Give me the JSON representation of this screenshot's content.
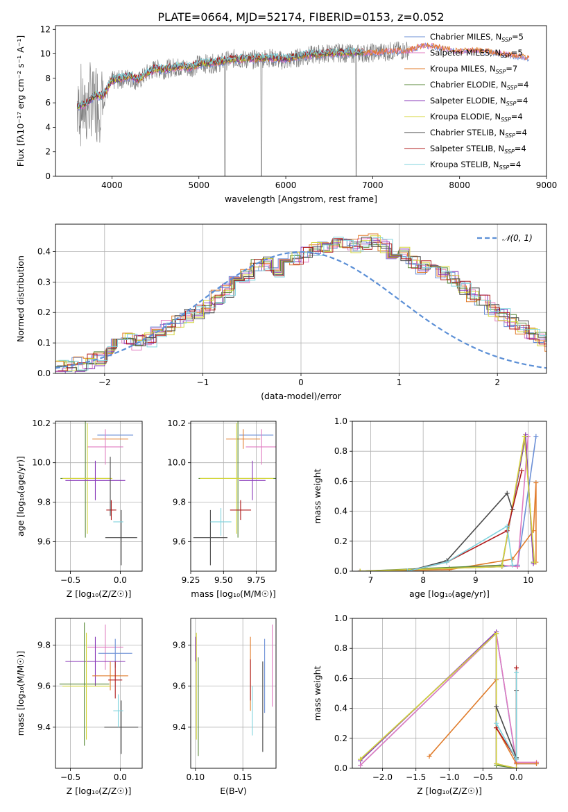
{
  "title": "PLATE=0664, MJD=52174, FIBERID=0153, z=0.052",
  "colors": {
    "Chabrier MILES": "#6b8fd6",
    "Salpeter MILES": "#e07bc0",
    "Kroupa MILES": "#e07b2a",
    "Chabrier ELODIE": "#5a8a3a",
    "Salpeter ELODIE": "#8a3ab9",
    "Kroupa ELODIE": "#d4d63a",
    "Chabrier STELIB": "#4a4a4a",
    "Salpeter STELIB": "#b01c1c",
    "Kroupa STELIB": "#7fd3dd"
  },
  "chart_data": [
    {
      "id": "spectrum",
      "type": "line",
      "xlabel": "wavelength [Angstrom, rest frame]",
      "ylabel": "Flux [fλ10⁻¹⁷ erg cm⁻² s⁻¹ A⁻¹]",
      "xlim": [
        3350,
        9000
      ],
      "ylim": [
        0,
        12.3
      ],
      "xticks": [
        4000,
        5000,
        6000,
        7000,
        8000,
        9000
      ],
      "yticks": [
        0,
        2,
        4,
        6,
        8,
        10,
        12
      ],
      "legend_position": "top-right",
      "legend": [
        "Chabrier MILES, N_SSP=5",
        "Salpeter MILES, N_SSP=5",
        "Kroupa MILES, N_SSP=7",
        "Chabrier ELODIE, N_SSP=4",
        "Salpeter ELODIE, N_SSP=4",
        "Kroupa ELODIE, N_SSP=4",
        "Chabrier STELIB, N_SSP=4",
        "Salpeter STELIB, N_SSP=4",
        "Kroupa STELIB, N_SSP=4"
      ],
      "data_wavelength": [
        3600,
        3700,
        3800,
        3900,
        4000,
        4100,
        4200,
        4300,
        4400,
        4500,
        4600,
        4700,
        4800,
        4900,
        5000,
        5200,
        5400,
        5600,
        5800,
        6000,
        6200,
        6400,
        6600,
        6800,
        7000,
        7200,
        7400
      ],
      "data_flux": [
        5.8,
        5.5,
        6.4,
        6.2,
        7.8,
        7.9,
        8.1,
        7.7,
        8.4,
        8.8,
        8.7,
        8.9,
        8.9,
        8.8,
        9.2,
        9.2,
        9.6,
        9.5,
        9.7,
        9.4,
        9.8,
        10.0,
        10.1,
        10.0,
        10.1,
        10.2,
        10.3
      ],
      "model_wavelength": [
        3600,
        3700,
        3800,
        3900,
        4000,
        4100,
        4200,
        4300,
        4400,
        4500,
        4600,
        4700,
        4800,
        4900,
        5000,
        5200,
        5400,
        5600,
        5800,
        6000,
        6200,
        6400,
        6600,
        6800,
        7000,
        7200,
        7400,
        7600,
        7800,
        8000,
        8200,
        8400,
        8600,
        8800
      ],
      "model_flux": [
        5.7,
        5.9,
        6.6,
        6.6,
        7.8,
        8.0,
        8.2,
        7.9,
        8.4,
        8.8,
        8.7,
        8.9,
        9.0,
        8.9,
        9.2,
        9.3,
        9.6,
        9.6,
        9.7,
        9.6,
        9.9,
        10.0,
        10.1,
        10.1,
        10.2,
        10.3,
        10.4,
        10.8,
        10.6,
        10.3,
        10.4,
        10.2,
        10.0,
        9.8
      ]
    },
    {
      "id": "residuals",
      "type": "line",
      "xlabel": "(data-model)/error",
      "ylabel": "Normed distribution",
      "xlim": [
        -2.5,
        2.5
      ],
      "ylim": [
        0,
        0.49
      ],
      "xticks": [
        -2,
        -1,
        0,
        1,
        2
      ],
      "yticks": [
        0.0,
        0.1,
        0.2,
        0.3,
        0.4
      ],
      "grid": true,
      "legend_position": "top-right",
      "legend": [
        "𝒩(0, 1)"
      ],
      "bin_width": 0.1,
      "hist_values": [
        0.03,
        0.02,
        0.03,
        0.04,
        0.05,
        0.07,
        0.09,
        0.12,
        0.1,
        0.11,
        0.13,
        0.15,
        0.17,
        0.19,
        0.2,
        0.22,
        0.25,
        0.27,
        0.3,
        0.32,
        0.35,
        0.36,
        0.33,
        0.37,
        0.38,
        0.39,
        0.41,
        0.42,
        0.43,
        0.43,
        0.42,
        0.43,
        0.44,
        0.42,
        0.4,
        0.39,
        0.37,
        0.35,
        0.36,
        0.33,
        0.31,
        0.28,
        0.26,
        0.24,
        0.21,
        0.19,
        0.17,
        0.15,
        0.13,
        0.11,
        0.09,
        0.07,
        0.06,
        0.05,
        0.04,
        0.03,
        0.03,
        0.02,
        0.02,
        0.02
      ],
      "hist_x0": -2.5
    },
    {
      "id": "age-vs-Z",
      "type": "scatter",
      "xlabel": "Z [log₁₀(Z/Z☉)]",
      "ylabel": "age  [log₁₀(age/yr)]",
      "xlim": [
        -0.65,
        0.22
      ],
      "ylim": [
        9.45,
        10.21
      ],
      "xticks": [
        -0.5,
        0.0
      ],
      "yticks": [
        9.6,
        9.8,
        10.0,
        10.2
      ],
      "grid": true,
      "points": [
        {
          "model": "Chabrier MILES",
          "x": -0.05,
          "y": 10.14,
          "xerr": 0.18,
          "yerr": 0.0
        },
        {
          "model": "Kroupa MILES",
          "x": -0.1,
          "y": 10.12,
          "xerr": 0.18,
          "yerr": 0.0
        },
        {
          "model": "Salpeter MILES",
          "x": -0.15,
          "y": 10.08,
          "xerr": 0.18,
          "yerr": 0.09
        },
        {
          "model": "Chabrier ELODIE",
          "x": -0.35,
          "y": 9.92,
          "xerr": 0.25,
          "yerr": 0.3
        },
        {
          "model": "Kroupa ELODIE",
          "x": -0.33,
          "y": 9.92,
          "xerr": 0.25,
          "yerr": 0.28
        },
        {
          "model": "Salpeter ELODIE",
          "x": -0.25,
          "y": 9.91,
          "xerr": 0.3,
          "yerr": 0.1
        },
        {
          "model": "Chabrier STELIB",
          "x": 0.01,
          "y": 9.62,
          "xerr": 0.16,
          "yerr": 0.14
        },
        {
          "model": "Salpeter STELIB",
          "x": -0.09,
          "y": 9.76,
          "xerr": 0.05,
          "yerr": 0.05
        },
        {
          "model": "Kroupa STELIB",
          "x": -0.02,
          "y": 9.7,
          "xerr": 0.05,
          "yerr": 0.0
        },
        {
          "model": "Chabrier STELIB",
          "x": -0.1,
          "y": 9.88,
          "xerr": 0.0,
          "yerr": 0.15
        }
      ]
    },
    {
      "id": "age-vs-mass",
      "type": "scatter",
      "xlabel": "mass [log₁₀(M/M☉)]",
      "ylabel": "",
      "xlim": [
        9.25,
        9.9
      ],
      "ylim": [
        9.45,
        10.21
      ],
      "xticks": [
        9.25,
        9.5,
        9.75
      ],
      "yticks": [
        9.6,
        9.8,
        10.0,
        10.2
      ],
      "grid": true,
      "points": [
        {
          "model": "Chabrier MILES",
          "x": 9.75,
          "y": 10.14,
          "xerr": 0.13,
          "yerr": 0.0
        },
        {
          "model": "Kroupa MILES",
          "x": 9.65,
          "y": 10.12,
          "xerr": 0.13,
          "yerr": 0.05
        },
        {
          "model": "Salpeter MILES",
          "x": 9.79,
          "y": 10.08,
          "xerr": 0.12,
          "yerr": 0.09
        },
        {
          "model": "Chabrier ELODIE",
          "x": 9.61,
          "y": 9.92,
          "xerr": 0.3,
          "yerr": 0.3
        },
        {
          "model": "Kroupa ELODIE",
          "x": 9.6,
          "y": 9.92,
          "xerr": 0.28,
          "yerr": 0.28
        },
        {
          "model": "Salpeter ELODIE",
          "x": 9.72,
          "y": 9.91,
          "xerr": 0.1,
          "yerr": 0.1
        },
        {
          "model": "Chabrier STELIB",
          "x": 9.4,
          "y": 9.62,
          "xerr": 0.13,
          "yerr": 0.14
        },
        {
          "model": "Salpeter STELIB",
          "x": 9.63,
          "y": 9.76,
          "xerr": 0.08,
          "yerr": 0.05
        },
        {
          "model": "Kroupa STELIB",
          "x": 9.48,
          "y": 9.7,
          "xerr": 0.08,
          "yerr": 0.07
        }
      ]
    },
    {
      "id": "massweight-vs-age",
      "type": "line",
      "xlabel": "age  [log₁₀(age/yr)]",
      "ylabel": "mass weight",
      "xlim": [
        6.65,
        10.35
      ],
      "ylim": [
        0,
        1.0
      ],
      "xticks": [
        7,
        8,
        9,
        10
      ],
      "yticks": [
        0.0,
        0.2,
        0.4,
        0.6,
        0.8,
        1.0
      ],
      "grid": true,
      "series": [
        {
          "model": "Chabrier MILES",
          "x": [
            6.8,
            8.5,
            9.5,
            9.8,
            10.15
          ],
          "y": [
            0.0,
            0.02,
            0.03,
            0.04,
            0.9
          ]
        },
        {
          "model": "Salpeter MILES",
          "x": [
            6.8,
            8.5,
            9.5,
            9.8,
            10.0
          ],
          "y": [
            0.0,
            0.02,
            0.04,
            0.03,
            0.9
          ]
        },
        {
          "model": "Kroupa MILES",
          "x": [
            6.8,
            8.5,
            9.7,
            10.1,
            10.15,
            10.15
          ],
          "y": [
            0.0,
            0.01,
            0.08,
            0.27,
            0.59,
            0.06
          ]
        },
        {
          "model": "Chabrier ELODIE",
          "x": [
            6.8,
            9.5,
            9.95,
            10.1
          ],
          "y": [
            0.0,
            0.04,
            0.9,
            0.06
          ]
        },
        {
          "model": "Salpeter ELODIE",
          "x": [
            6.8,
            9.5,
            9.95,
            10.1
          ],
          "y": [
            0.0,
            0.03,
            0.91,
            0.05
          ]
        },
        {
          "model": "Kroupa ELODIE",
          "x": [
            6.8,
            9.5,
            9.93,
            10.12
          ],
          "y": [
            0.0,
            0.03,
            0.9,
            0.06
          ]
        },
        {
          "model": "Chabrier STELIB",
          "x": [
            7.7,
            8.45,
            9.6,
            9.7
          ],
          "y": [
            0.0,
            0.07,
            0.52,
            0.41
          ]
        },
        {
          "model": "Salpeter STELIB",
          "x": [
            7.7,
            8.45,
            9.6,
            9.88
          ],
          "y": [
            0.0,
            0.06,
            0.27,
            0.67
          ]
        },
        {
          "model": "Kroupa STELIB",
          "x": [
            7.7,
            8.45,
            9.6,
            9.7
          ],
          "y": [
            0.0,
            0.06,
            0.3,
            0.04
          ]
        }
      ]
    },
    {
      "id": "mass-vs-Z",
      "type": "scatter",
      "xlabel": "Z [log₁₀(Z/Z☉)]",
      "ylabel": "mass [log₁₀(M/M☉)]",
      "xlim": [
        -0.65,
        0.22
      ],
      "ylim": [
        9.2,
        9.93
      ],
      "xticks": [
        -0.5,
        0.0
      ],
      "yticks": [
        9.4,
        9.6,
        9.8
      ],
      "grid": true,
      "points": [
        {
          "model": "Salpeter MILES",
          "x": -0.15,
          "y": 9.79,
          "xerr": 0.18,
          "yerr": 0.11
        },
        {
          "model": "Chabrier MILES",
          "x": -0.05,
          "y": 9.76,
          "xerr": 0.17,
          "yerr": 0.07
        },
        {
          "model": "Salpeter ELODIE",
          "x": -0.25,
          "y": 9.72,
          "xerr": 0.3,
          "yerr": 0.12
        },
        {
          "model": "Kroupa MILES",
          "x": -0.1,
          "y": 9.65,
          "xerr": 0.18,
          "yerr": 0.07
        },
        {
          "model": "Chabrier ELODIE",
          "x": -0.36,
          "y": 9.61,
          "xerr": 0.25,
          "yerr": 0.3
        },
        {
          "model": "Kroupa ELODIE",
          "x": -0.34,
          "y": 9.6,
          "xerr": 0.24,
          "yerr": 0.26
        },
        {
          "model": "Chabrier STELIB",
          "x": 0.01,
          "y": 9.4,
          "xerr": 0.17,
          "yerr": 0.13
        },
        {
          "model": "Salpeter STELIB",
          "x": -0.05,
          "y": 9.63,
          "xerr": 0.07,
          "yerr": 0.09
        },
        {
          "model": "Kroupa STELIB",
          "x": -0.02,
          "y": 9.48,
          "xerr": 0.05,
          "yerr": 0.08
        }
      ]
    },
    {
      "id": "mass-vs-EBV",
      "type": "scatter",
      "xlabel": "E(B-V)",
      "ylabel": "",
      "xlim": [
        0.095,
        0.185
      ],
      "ylim": [
        9.2,
        9.93
      ],
      "xticks": [
        0.1,
        0.15
      ],
      "yticks": [
        9.4,
        9.6,
        9.8
      ],
      "grid": true,
      "points": [
        {
          "model": "Salpeter ELODIE",
          "x": 0.1,
          "y": 9.78,
          "xerr": 0.0,
          "yerr": 0.06
        },
        {
          "model": "Kroupa ELODIE",
          "x": 0.101,
          "y": 9.6,
          "xerr": 0.0,
          "yerr": 0.26
        },
        {
          "model": "Chabrier ELODIE",
          "x": 0.103,
          "y": 9.5,
          "xerr": 0.0,
          "yerr": 0.24
        },
        {
          "model": "Kroupa MILES",
          "x": 0.158,
          "y": 9.66,
          "xerr": 0.0,
          "yerr": 0.18
        },
        {
          "model": "Salpeter STELIB",
          "x": 0.158,
          "y": 9.63,
          "xerr": 0.0,
          "yerr": 0.1
        },
        {
          "model": "Kroupa STELIB",
          "x": 0.16,
          "y": 9.48,
          "xerr": 0.0,
          "yerr": 0.12
        },
        {
          "model": "Chabrier STELIB",
          "x": 0.171,
          "y": 9.5,
          "xerr": 0.0,
          "yerr": 0.22
        },
        {
          "model": "Chabrier MILES",
          "x": 0.173,
          "y": 9.65,
          "xerr": 0.0,
          "yerr": 0.18
        },
        {
          "model": "Salpeter MILES",
          "x": 0.181,
          "y": 9.7,
          "xerr": 0.0,
          "yerr": 0.2
        }
      ]
    },
    {
      "id": "massweight-vs-Z",
      "type": "line",
      "xlabel": "Z [log₁₀(Z/Z☉)]",
      "ylabel": "mass weight",
      "xlim": [
        -2.45,
        0.45
      ],
      "ylim": [
        0,
        1.0
      ],
      "xticks": [
        -2.0,
        -1.5,
        -1.0,
        -0.5,
        0.0
      ],
      "yticks": [
        0.0,
        0.2,
        0.4,
        0.6,
        0.8,
        1.0
      ],
      "grid": true,
      "series": [
        {
          "model": "Chabrier MILES",
          "x": [
            -2.33,
            -0.3,
            0.0,
            0.3
          ],
          "y": [
            0.02,
            0.9,
            0.03,
            0.03
          ]
        },
        {
          "model": "Salpeter MILES",
          "x": [
            -2.33,
            -0.3,
            0.0,
            0.3
          ],
          "y": [
            0.02,
            0.9,
            0.04,
            0.04
          ]
        },
        {
          "model": "Kroupa MILES",
          "x": [
            -1.3,
            -0.3,
            -0.3,
            0.0,
            0.3
          ],
          "y": [
            0.08,
            0.59,
            0.27,
            0.03,
            0.03
          ]
        },
        {
          "model": "Chabrier ELODIE",
          "x": [
            -2.33,
            -0.3,
            -0.3,
            0.0
          ],
          "y": [
            0.06,
            0.9,
            0.02,
            0.0
          ]
        },
        {
          "model": "Salpeter ELODIE",
          "x": [
            -2.33,
            -0.3,
            -0.3,
            0.0
          ],
          "y": [
            0.05,
            0.91,
            0.03,
            0.0
          ]
        },
        {
          "model": "Kroupa ELODIE",
          "x": [
            -2.33,
            -0.3,
            -0.3,
            0.0
          ],
          "y": [
            0.06,
            0.9,
            0.03,
            0.0
          ]
        },
        {
          "model": "Chabrier STELIB",
          "x": [
            -0.3,
            0.0,
            0.0
          ],
          "y": [
            0.41,
            0.07,
            0.52
          ]
        },
        {
          "model": "Salpeter STELIB",
          "x": [
            -0.3,
            0.0,
            0.0
          ],
          "y": [
            0.27,
            0.06,
            0.67
          ]
        },
        {
          "model": "Kroupa STELIB",
          "x": [
            -0.3,
            0.0,
            0.0
          ],
          "y": [
            0.3,
            0.06,
            0.64
          ]
        }
      ]
    }
  ]
}
